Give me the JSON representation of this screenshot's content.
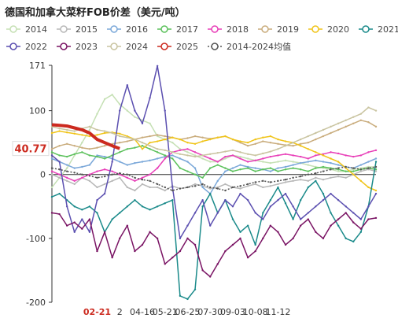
{
  "title": "德国和加拿大菜籽FOB价差（美元/吨）",
  "legend_rows": [
    [
      "2014",
      "2015",
      "2016",
      "2017",
      "2018",
      "2019",
      "2020",
      "2021"
    ],
    [
      "2022",
      "2023",
      "2024",
      "2025",
      "2014-2024均值"
    ]
  ],
  "chart_data": {
    "type": "line",
    "title": "德国和加拿大菜籽FOB价差（美元/吨）",
    "xlabel": "",
    "ylabel": "",
    "ylim": [
      -200,
      171
    ],
    "yticks": [
      171,
      100,
      0,
      -100,
      -200
    ],
    "xtick_labels": [
      "02-21",
      "2",
      "04-16",
      "05-21",
      "06-25",
      "07-30",
      "09-03",
      "10-08",
      "11-12"
    ],
    "xtick_positions": [
      6,
      9,
      12,
      15,
      18,
      21,
      24,
      27,
      30
    ],
    "x_range": [
      0,
      43
    ],
    "highlight_label": "40.77",
    "highlight_value": 40.77,
    "legend_position": "top",
    "grid": false,
    "series": [
      {
        "name": "2014",
        "color": "#c5e0b4",
        "values": [
          -20,
          -5,
          10,
          30,
          50,
          70,
          95,
          118,
          125,
          110,
          100,
          90,
          85,
          80,
          60,
          55,
          50,
          40,
          35,
          30,
          25,
          20,
          20,
          25,
          30,
          28,
          25,
          22,
          20,
          18,
          20,
          22,
          20,
          18,
          15,
          12,
          10,
          8,
          5,
          5,
          8,
          10,
          12,
          12
        ]
      },
      {
        "name": "2015",
        "color": "#b8b8b8",
        "values": [
          0,
          -5,
          -10,
          -15,
          -5,
          -10,
          -20,
          -15,
          -10,
          -5,
          -20,
          -25,
          -15,
          -20,
          -20,
          -25,
          -18,
          -22,
          -20,
          -15,
          -18,
          -22,
          -20,
          -15,
          -20,
          -22,
          -18,
          -15,
          -20,
          -18,
          -15,
          -12,
          -10,
          -8,
          -10,
          -5,
          -8,
          -5,
          -3,
          -5,
          0,
          5,
          8,
          5
        ]
      },
      {
        "name": "2016",
        "color": "#7ba8d9",
        "values": [
          25,
          20,
          15,
          10,
          12,
          15,
          30,
          28,
          25,
          20,
          15,
          18,
          20,
          22,
          25,
          28,
          30,
          25,
          20,
          10,
          -20,
          -30,
          -10,
          5,
          10,
          15,
          12,
          10,
          8,
          5,
          10,
          12,
          15,
          18,
          20,
          22,
          20,
          18,
          15,
          12,
          10,
          15,
          20,
          25
        ]
      },
      {
        "name": "2017",
        "color": "#5cc15c",
        "values": [
          35,
          30,
          28,
          32,
          35,
          30,
          28,
          25,
          30,
          35,
          40,
          42,
          45,
          40,
          35,
          30,
          25,
          10,
          5,
          0,
          -5,
          10,
          15,
          10,
          5,
          8,
          10,
          5,
          8,
          10,
          5,
          8,
          10,
          8,
          5,
          10,
          12,
          10,
          8,
          5,
          5,
          8,
          10,
          8
        ]
      },
      {
        "name": "2018",
        "color": "#e83fb8",
        "values": [
          5,
          0,
          -5,
          -10,
          -5,
          0,
          5,
          8,
          5,
          0,
          -5,
          -10,
          -5,
          0,
          10,
          25,
          35,
          38,
          40,
          35,
          30,
          25,
          20,
          28,
          30,
          25,
          20,
          22,
          25,
          28,
          30,
          32,
          30,
          28,
          25,
          30,
          32,
          35,
          33,
          30,
          28,
          30,
          35,
          38
        ]
      },
      {
        "name": "2019",
        "color": "#c9ac7c",
        "values": [
          40,
          45,
          48,
          45,
          42,
          40,
          42,
          45,
          48,
          50,
          52,
          55,
          58,
          60,
          62,
          60,
          58,
          55,
          57,
          60,
          58,
          56,
          58,
          60,
          55,
          50,
          45,
          48,
          52,
          50,
          48,
          46,
          45,
          48,
          50,
          55,
          60,
          65,
          70,
          75,
          80,
          85,
          82,
          75
        ]
      },
      {
        "name": "2020",
        "color": "#f0c419",
        "values": [
          65,
          68,
          66,
          64,
          62,
          60,
          62,
          65,
          66,
          64,
          60,
          55,
          40,
          50,
          52,
          55,
          58,
          55,
          50,
          48,
          52,
          55,
          58,
          60,
          55,
          52,
          50,
          55,
          58,
          60,
          55,
          52,
          50,
          45,
          40,
          35,
          30,
          25,
          20,
          10,
          0,
          -10,
          -20,
          -25
        ]
      },
      {
        "name": "2021",
        "color": "#1a8a8a",
        "values": [
          -35,
          -30,
          -40,
          -50,
          -55,
          -50,
          -60,
          -90,
          -70,
          -60,
          -50,
          -40,
          -50,
          -55,
          -50,
          -45,
          -40,
          -190,
          -195,
          -180,
          -50,
          -30,
          -60,
          -40,
          -70,
          -90,
          -80,
          -110,
          -60,
          -40,
          -20,
          -45,
          -70,
          -40,
          -20,
          -10,
          -30,
          -60,
          -80,
          -100,
          -105,
          -90,
          -50,
          20
        ]
      },
      {
        "name": "2022",
        "color": "#5b4fb0",
        "values": [
          30,
          20,
          -50,
          -90,
          -70,
          -90,
          -40,
          -30,
          20,
          100,
          140,
          100,
          80,
          120,
          170,
          100,
          -20,
          -100,
          -80,
          -60,
          -40,
          -80,
          -60,
          -40,
          -50,
          -30,
          -40,
          -60,
          -70,
          -50,
          -40,
          -30,
          -50,
          -70,
          -60,
          -50,
          -40,
          -30,
          -40,
          -50,
          -60,
          -70,
          -50,
          -30
        ]
      },
      {
        "name": "2023",
        "color": "#7a1464",
        "values": [
          -60,
          -62,
          -80,
          -75,
          -85,
          -70,
          -120,
          -90,
          -130,
          -100,
          -80,
          -120,
          -110,
          -90,
          -100,
          -140,
          -130,
          -120,
          -100,
          -110,
          -150,
          -160,
          -140,
          -120,
          -110,
          -100,
          -130,
          -120,
          -100,
          -80,
          -90,
          -110,
          -100,
          -80,
          -70,
          -90,
          -100,
          -80,
          -70,
          -60,
          -75,
          -85,
          -70,
          -68
        ]
      },
      {
        "name": "2024",
        "color": "#c9c4a0",
        "values": [
          75,
          72,
          70,
          68,
          72,
          75,
          70,
          68,
          65,
          60,
          58,
          55,
          50,
          45,
          40,
          38,
          35,
          32,
          30,
          28,
          30,
          32,
          34,
          36,
          38,
          35,
          32,
          30,
          33,
          36,
          40,
          45,
          50,
          55,
          60,
          65,
          70,
          75,
          80,
          85,
          90,
          95,
          105,
          100
        ]
      },
      {
        "name": "2025",
        "color": "#cc2a1f",
        "values": [
          78,
          77,
          76,
          73,
          70,
          65,
          55,
          50,
          45,
          40.77
        ]
      },
      {
        "name": "2014-2024均值",
        "color": "#555555",
        "dashed": true,
        "values": [
          10,
          8,
          5,
          3,
          0,
          -2,
          -5,
          -3,
          0,
          2,
          0,
          -5,
          -8,
          -10,
          -15,
          -20,
          -25,
          -22,
          -20,
          -18,
          -15,
          -20,
          -22,
          -25,
          -20,
          -18,
          -15,
          -12,
          -10,
          -12,
          -10,
          -8,
          -5,
          -3,
          0,
          2,
          5,
          8,
          10,
          12,
          10,
          8,
          10,
          12
        ]
      }
    ]
  }
}
